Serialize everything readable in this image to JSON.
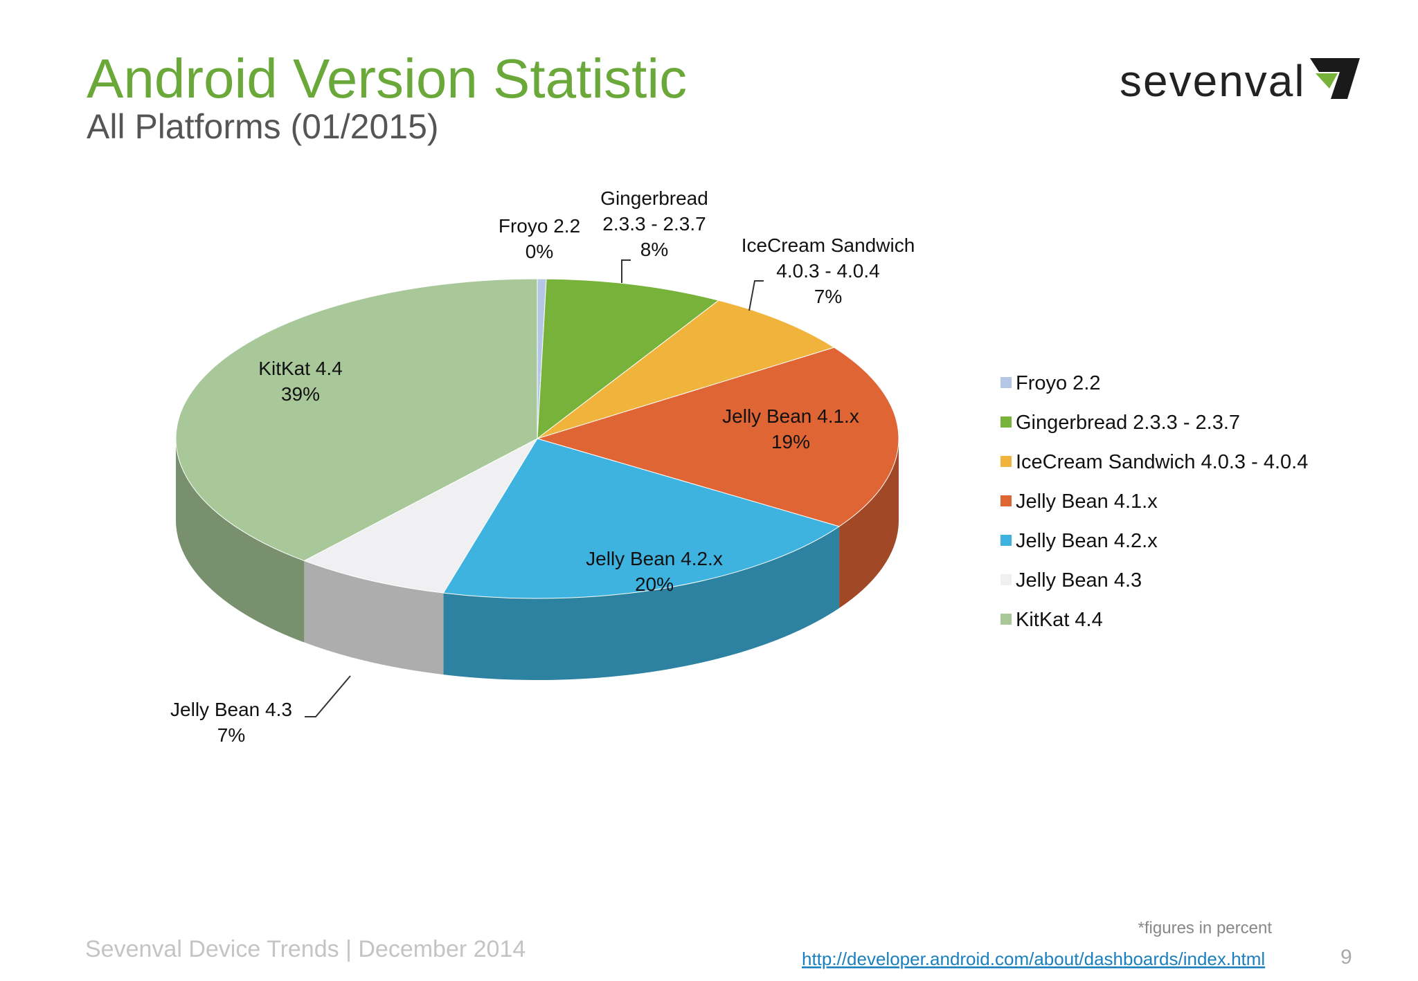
{
  "chart_data": {
    "type": "pie3d",
    "title": "Android Version Statistic",
    "subtitle": "All Platforms (01/2015)",
    "categories": [
      "Froyo 2.2",
      "Gingerbread 2.3.3 - 2.3.7",
      "IceCream Sandwich 4.0.3 - 4.0.4",
      "Jelly Bean 4.1.x",
      "Jelly Bean 4.2.x",
      "Jelly Bean 4.3",
      "KitKat 4.4"
    ],
    "values": [
      0.4,
      8,
      7,
      19,
      20,
      7,
      39
    ],
    "value_labels": [
      "0%",
      "8%",
      "7%",
      "19%",
      "20%",
      "7%",
      "39%"
    ],
    "colors": [
      "#b4c7e7",
      "#77b23a",
      "#f0b43c",
      "#e06535",
      "#3eb3e0",
      "#f0f0f2",
      "#a8c89a"
    ],
    "legend": "right",
    "note": "*figures in percent"
  },
  "logo": "sevenval",
  "footer": {
    "left": "Sevenval Device Trends | December 2014",
    "link": "http://developer.android.com/about/dashboards/index.html",
    "page": "9"
  }
}
